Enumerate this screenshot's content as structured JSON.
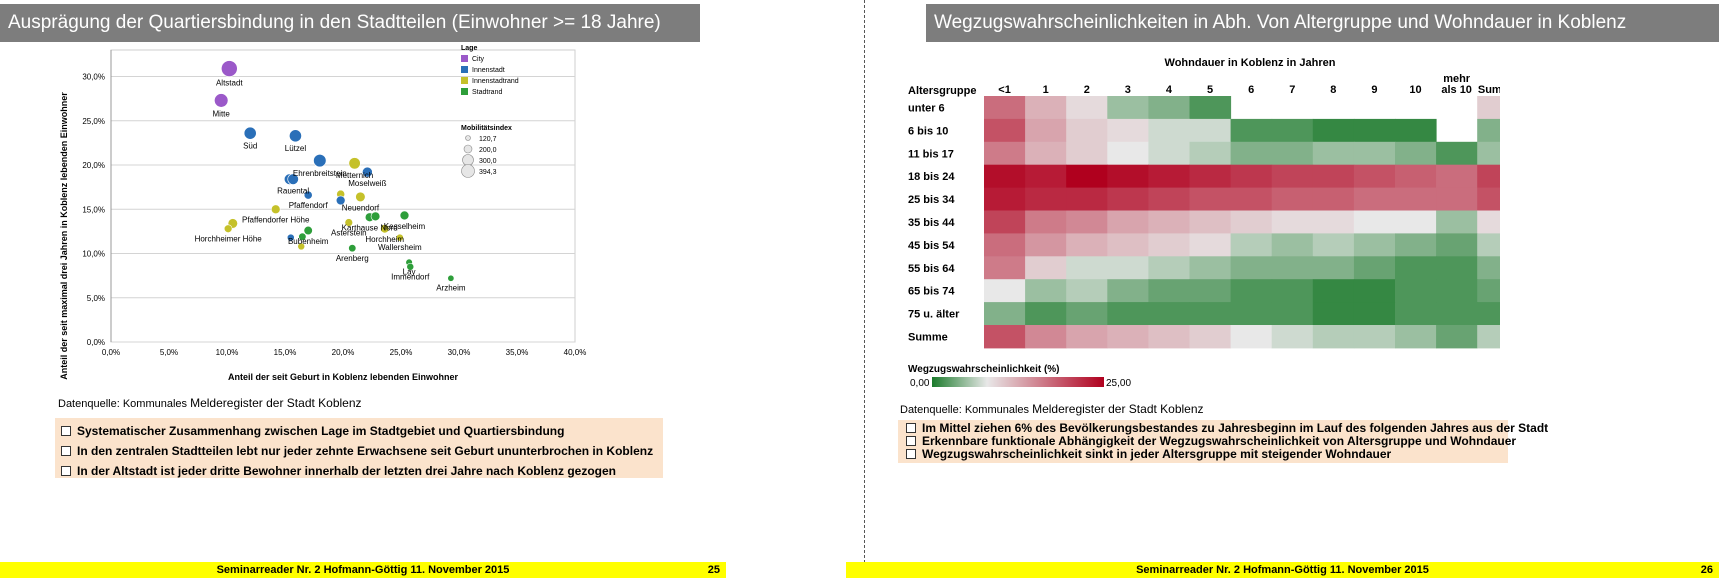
{
  "left_slide": {
    "title": "Ausprägung der Quartiersbindung in den Stadtteilen (Einwohner >= 18 Jahre)",
    "source_prefix": "Datenquelle: Kommunales",
    "source_rest": "Melderegister der Stadt Koblenz",
    "bullets": [
      "Systematischer Zusammenhang zwischen Lage im Stadtgebiet und Quartiersbindung",
      "In den zentralen Stadtteilen lebt nur jeder zehnte Erwachsene seit Geburt ununterbrochen in Koblenz",
      "In der Altstadt ist jeder dritte Bewohner innerhalb der letzten drei Jahre nach Koblenz gezogen"
    ],
    "footer": "Seminarreader Nr. 2 Hofmann-Göttig 11. November 2015",
    "page": "25"
  },
  "right_slide": {
    "title": "Wegzugswahrscheinlichkeiten in Abh. Von Altergruppe und Wohndauer in Koblenz",
    "source_prefix": "Datenquelle: Kommunales",
    "source_rest": "Melderegister der Stadt Koblenz",
    "bullets": [
      "Im Mittel ziehen 6% des Bevölkerungsbestandes zu Jahresbeginn im Lauf des folgenden Jahres aus der Stadt",
      "Erkennbare funktionale Abhängigkeit der Wegzugswahrscheinlichkeit von Altersgruppe und Wohndauer",
      "Wegzugswahrscheinlichkeit sinkt in jeder Altersgruppe mit steigender Wohndauer"
    ],
    "footer": "Seminarreader Nr. 2 Hofmann-Göttig 11. November 2015",
    "page": "26"
  },
  "chart_data": [
    {
      "type": "scatter",
      "xlabel": "Anteil der seit Geburt in Koblenz lebenden Einwohner",
      "ylabel": "Anteil der seit maximal drei Jahren in Koblenz lebenden Einwohner",
      "xlim": [
        0,
        40
      ],
      "ylim": [
        0,
        33
      ],
      "xticks": [
        0,
        5,
        10,
        15,
        20,
        25,
        30,
        35,
        40
      ],
      "xtick_labels": [
        "0,0%",
        "5,0%",
        "10,0%",
        "15,0%",
        "20,0%",
        "25,0%",
        "30,0%",
        "35,0%",
        "40,0%"
      ],
      "yticks": [
        0,
        5,
        10,
        15,
        20,
        25,
        30
      ],
      "ytick_labels": [
        "0,0%",
        "5,0%",
        "10,0%",
        "15,0%",
        "20,0%",
        "25,0%",
        "30,0%"
      ],
      "grid": true,
      "legend_title": "Lage",
      "legend": [
        {
          "name": "City",
          "color": "#9b59c9"
        },
        {
          "name": "Innenstadt",
          "color": "#2a6fb8"
        },
        {
          "name": "Innenstadtrand",
          "color": "#c5c12a"
        },
        {
          "name": "Stadtrand",
          "color": "#2e9e3a"
        }
      ],
      "size_legend_title": "Mobilitätsindex",
      "size_legend": [
        {
          "label": "120,7",
          "value": 120.7
        },
        {
          "label": "200,0",
          "value": 200.0
        },
        {
          "label": "300,0",
          "value": 300.0
        },
        {
          "label": "394,3",
          "value": 394.3
        }
      ],
      "points": [
        {
          "label": "Altstadt",
          "x": 10.2,
          "y": 30.9,
          "cat": 0,
          "size": 394
        },
        {
          "label": "Mitte",
          "x": 9.5,
          "y": 27.3,
          "cat": 0,
          "size": 330
        },
        {
          "label": "Süd",
          "x": 12.0,
          "y": 23.6,
          "cat": 1,
          "size": 290
        },
        {
          "label": "Lützel",
          "x": 15.9,
          "y": 23.3,
          "cat": 1,
          "size": 290
        },
        {
          "label": "Ehrenbreitstein",
          "x": 18.0,
          "y": 20.5,
          "cat": 1,
          "size": 300
        },
        {
          "label": "",
          "x": 15.4,
          "y": 18.4,
          "cat": 1,
          "size": 250
        },
        {
          "label": "Rauental",
          "x": 15.7,
          "y": 18.4,
          "cat": 1,
          "size": 250
        },
        {
          "label": "Pfaffendorf",
          "x": 17.0,
          "y": 16.6,
          "cat": 1,
          "size": 180
        },
        {
          "label": "Metternich",
          "x": 21.0,
          "y": 20.2,
          "cat": 2,
          "size": 270
        },
        {
          "label": "Moselweiß",
          "x": 22.1,
          "y": 19.2,
          "cat": 1,
          "size": 230
        },
        {
          "label": "",
          "x": 19.8,
          "y": 16.7,
          "cat": 2,
          "size": 180
        },
        {
          "label": "",
          "x": 19.8,
          "y": 16.0,
          "cat": 1,
          "size": 200
        },
        {
          "label": "Neuendorf",
          "x": 21.5,
          "y": 16.4,
          "cat": 2,
          "size": 220
        },
        {
          "label": "Pfaffendorfer Höhe",
          "x": 14.2,
          "y": 15.0,
          "cat": 2,
          "size": 200
        },
        {
          "label": "Karthause Nord",
          "x": 22.3,
          "y": 14.1,
          "cat": 3,
          "size": 200
        },
        {
          "label": "",
          "x": 22.8,
          "y": 14.2,
          "cat": 3,
          "size": 200
        },
        {
          "label": "Kesselheim",
          "x": 25.3,
          "y": 14.3,
          "cat": 3,
          "size": 200
        },
        {
          "label": "",
          "x": 10.5,
          "y": 13.4,
          "cat": 2,
          "size": 220
        },
        {
          "label": "Horchheimer Höhe",
          "x": 10.1,
          "y": 12.8,
          "cat": 2,
          "size": 170
        },
        {
          "label": "Bubenheim",
          "x": 17.0,
          "y": 12.6,
          "cat": 3,
          "size": 190
        },
        {
          "label": "",
          "x": 15.5,
          "y": 11.8,
          "cat": 1,
          "size": 150
        },
        {
          "label": "",
          "x": 16.5,
          "y": 11.9,
          "cat": 3,
          "size": 160
        },
        {
          "label": "",
          "x": 16.4,
          "y": 10.8,
          "cat": 2,
          "size": 150
        },
        {
          "label": "Asterstein",
          "x": 20.5,
          "y": 13.5,
          "cat": 2,
          "size": 170
        },
        {
          "label": "Horchheim",
          "x": 23.6,
          "y": 12.8,
          "cat": 2,
          "size": 190
        },
        {
          "label": "Wallersheim",
          "x": 24.9,
          "y": 11.8,
          "cat": 2,
          "size": 150
        },
        {
          "label": "Arenberg",
          "x": 20.8,
          "y": 10.6,
          "cat": 3,
          "size": 160
        },
        {
          "label": "Lay",
          "x": 25.7,
          "y": 9.0,
          "cat": 3,
          "size": 140
        },
        {
          "label": "Immendorf",
          "x": 25.8,
          "y": 8.5,
          "cat": 3,
          "size": 150
        },
        {
          "label": "Arzheim",
          "x": 29.3,
          "y": 7.2,
          "cat": 3,
          "size": 130
        }
      ]
    },
    {
      "type": "heatmap",
      "title": "Wohndauer in Koblenz in Jahren",
      "row_header": "Altersgruppe",
      "columns": [
        "<1",
        "1",
        "2",
        "3",
        "4",
        "5",
        "6",
        "7",
        "8",
        "9",
        "10",
        "mehr als 10",
        "Summe"
      ],
      "rows": [
        "unter 6",
        "6 bis 10",
        "11 bis 17",
        "18 bis 24",
        "25 bis 34",
        "35 bis 44",
        "45 bis 54",
        "55 bis 64",
        "65 bis 74",
        "75 u. älter",
        "Summe"
      ],
      "scale_title": "Wegzugswahrscheinlichkeit (%)",
      "scale_min": 0,
      "scale_max": 25,
      "scale_min_label": "0,00",
      "scale_max_label": "25,00",
      "neutral_value": 8,
      "values": [
        [
          17,
          12,
          9,
          5,
          4,
          2,
          null,
          null,
          null,
          null,
          null,
          null,
          10
        ],
        [
          19,
          13,
          10,
          9,
          7,
          7,
          2,
          2,
          1,
          1,
          1,
          null,
          4
        ],
        [
          16,
          12,
          10,
          8,
          7,
          6,
          4,
          4,
          5,
          5,
          4,
          2,
          5
        ],
        [
          24,
          23,
          25,
          24,
          23,
          22,
          21,
          20,
          20,
          19,
          18,
          17,
          20
        ],
        [
          23,
          22,
          22,
          21,
          20,
          19,
          19,
          18,
          18,
          17,
          17,
          17,
          19
        ],
        [
          20,
          16,
          15,
          13,
          12,
          11,
          10,
          9,
          9,
          8,
          8,
          5,
          9
        ],
        [
          17,
          14,
          12,
          11,
          10,
          9,
          6,
          5,
          6,
          5,
          4,
          3,
          6
        ],
        [
          16,
          10,
          7,
          7,
          6,
          5,
          4,
          4,
          4,
          3,
          2,
          2,
          4
        ],
        [
          8,
          5,
          6,
          4,
          3,
          3,
          2,
          2,
          1,
          1,
          2,
          2,
          3
        ],
        [
          4,
          2,
          3,
          2,
          2,
          2,
          2,
          2,
          1,
          1,
          2,
          2,
          2
        ],
        [
          19,
          15,
          13,
          12,
          11,
          10,
          8,
          7,
          6,
          6,
          5,
          3,
          6
        ]
      ]
    }
  ]
}
